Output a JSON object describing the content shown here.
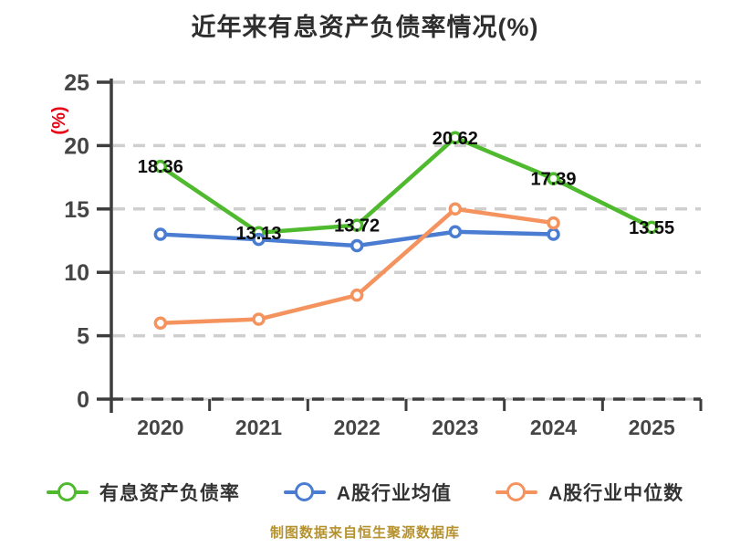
{
  "title": "近年来有息资产负债率情况(%)",
  "y_axis_label": "(%)",
  "footer": "制图数据来自恒生聚源数据库",
  "chart_data": {
    "type": "line",
    "x_labels": [
      "2020",
      "2021",
      "2022",
      "2023",
      "2024",
      "2025"
    ],
    "series": [
      {
        "key": "company",
        "name": "有息资产负债率",
        "color": "#4fba2e",
        "values": [
          18.36,
          13.13,
          13.72,
          20.62,
          17.39,
          13.55
        ],
        "point_labels": [
          "18.36",
          "13.13",
          "13.72",
          "20.62",
          "17.39",
          "13.55"
        ]
      },
      {
        "key": "industry-avg",
        "name": "A股行业均值",
        "color": "#4a7cd1",
        "values": [
          13.0,
          12.6,
          12.1,
          13.2,
          13.0,
          null
        ],
        "point_labels": null
      },
      {
        "key": "industry-median",
        "name": "A股行业中位数",
        "color": "#f5935f",
        "values": [
          6.0,
          6.3,
          8.2,
          15.0,
          13.9,
          null
        ],
        "point_labels": null
      }
    ],
    "ylim": [
      0,
      25
    ],
    "yticks": [
      0,
      5,
      10,
      15,
      20,
      25
    ],
    "grid": "horizontal-dashed",
    "legend_position": "bottom"
  },
  "colors": {
    "background": "#ffffff",
    "grid": "#cfcfcf",
    "axis": "#3d3d3d",
    "tick_text": "#454545",
    "title_text": "#2e2e2e",
    "point_label_text": "#0d0d0d",
    "y_axis_label_text": "#e60012",
    "legend_text": "#333333",
    "footer_text": "#b6922f"
  }
}
